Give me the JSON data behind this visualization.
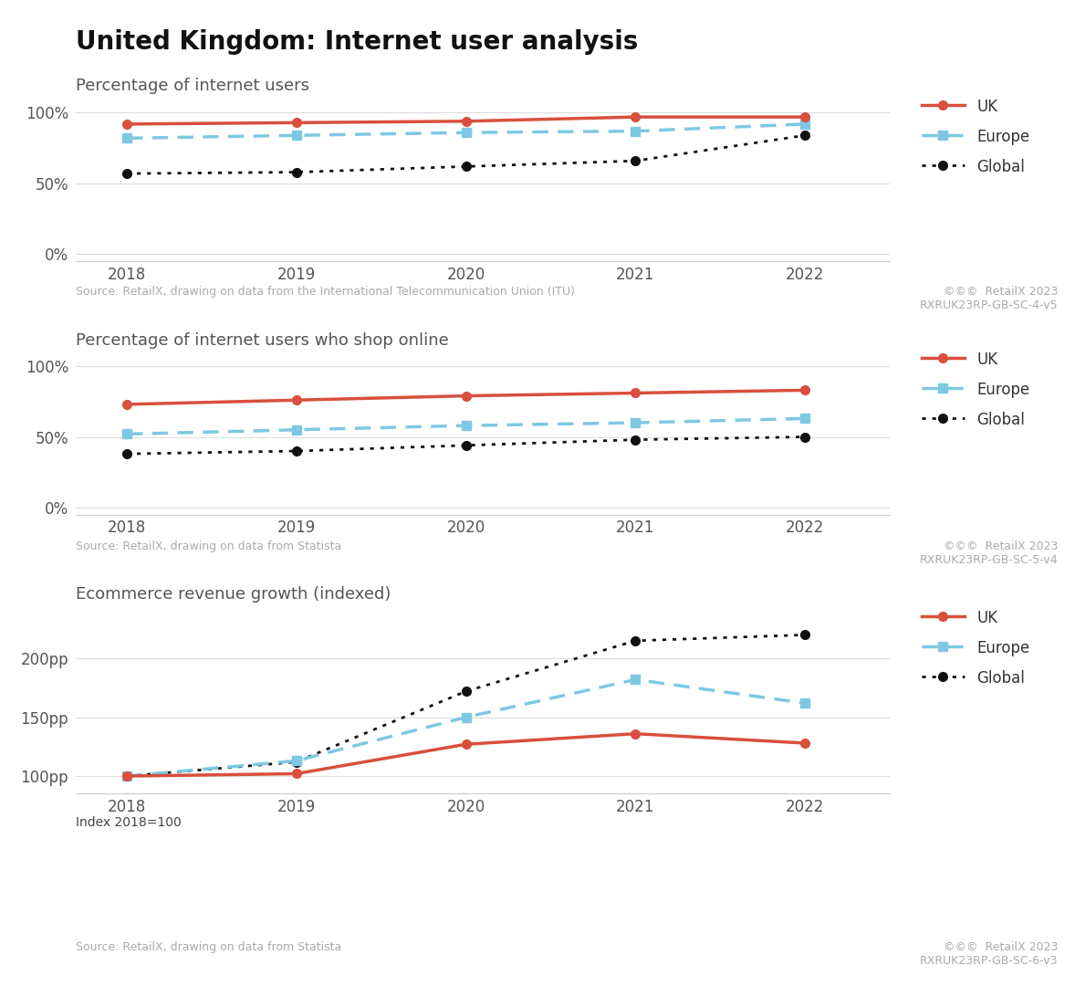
{
  "title": "United Kingdom: Internet user analysis",
  "years": [
    2018,
    2019,
    2020,
    2021,
    2022
  ],
  "chart1_subtitle": "Percentage of internet users",
  "chart1_uk": [
    0.92,
    0.93,
    0.94,
    0.97,
    0.97
  ],
  "chart1_europe": [
    0.82,
    0.84,
    0.86,
    0.87,
    0.92
  ],
  "chart1_global": [
    0.57,
    0.58,
    0.62,
    0.66,
    0.84
  ],
  "chart1_yticks": [
    0.0,
    0.5,
    1.0
  ],
  "chart1_yticklabels": [
    "0%",
    "50%",
    "100%"
  ],
  "chart1_source": "Source: RetailX, drawing on data from the International Telecommunication Union (ITU)",
  "chart1_code": "RXRUK23RP-GB-SC-4-v5",
  "chart2_subtitle": "Percentage of internet users who shop online",
  "chart2_uk": [
    0.73,
    0.76,
    0.79,
    0.81,
    0.83
  ],
  "chart2_europe": [
    0.52,
    0.55,
    0.58,
    0.6,
    0.63
  ],
  "chart2_global": [
    0.38,
    0.4,
    0.44,
    0.48,
    0.5
  ],
  "chart2_yticks": [
    0.0,
    0.5,
    1.0
  ],
  "chart2_yticklabels": [
    "0%",
    "50%",
    "100%"
  ],
  "chart2_source": "Source: RetailX, drawing on data from Statista",
  "chart2_code": "RXRUK23RP-GB-SC-5-v4",
  "chart3_subtitle": "Ecommerce revenue growth (indexed)",
  "chart3_uk": [
    100,
    102,
    127,
    136,
    128
  ],
  "chart3_europe": [
    100,
    113,
    150,
    182,
    162
  ],
  "chart3_global": [
    100,
    112,
    172,
    215,
    220
  ],
  "chart3_yticks": [
    100,
    150,
    200
  ],
  "chart3_yticklabels": [
    "100pp",
    "150pp",
    "200pp"
  ],
  "chart3_source": "Source: RetailX, drawing on data from Statista",
  "chart3_code": "RXRUK23RP-GB-SC-6-v3",
  "chart3_index_note": "Index 2018=100",
  "color_uk": "#d94f3d",
  "color_europe": "#7ec8e3",
  "color_global": "#111111",
  "color_source": "#aaaaaa",
  "color_title": "#111111",
  "color_subtitle": "#555555",
  "background_color": "#ffffff",
  "xlim_left": 2017.7,
  "xlim_right": 2022.5
}
